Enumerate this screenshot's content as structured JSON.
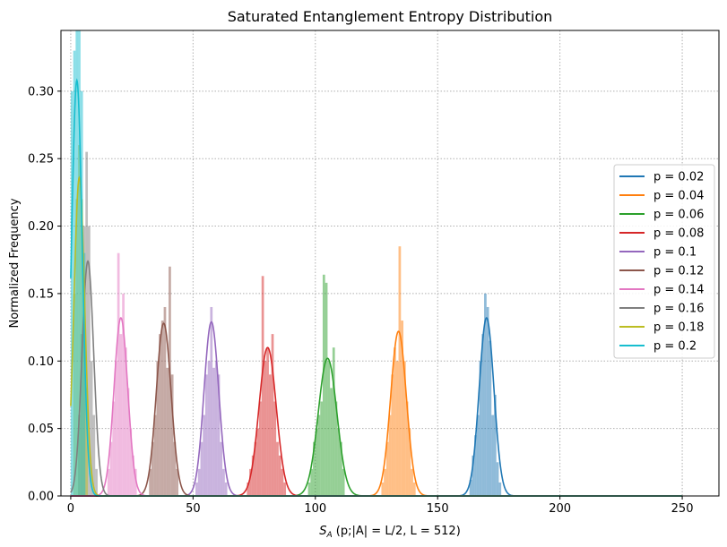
{
  "chart_data": {
    "type": "histogram+line",
    "title": "Saturated Entanglement Entropy Distribution",
    "xlabel": {
      "main": "S",
      "sub": "A",
      "rest": " (p;|A| = L/2, L = 512)"
    },
    "ylabel": "Normalized Frequency",
    "xlim": [
      -4,
      265
    ],
    "ylim": [
      0,
      0.345
    ],
    "xticks": [
      0,
      50,
      100,
      150,
      200,
      250
    ],
    "yticks": [
      0.0,
      0.05,
      0.1,
      0.15,
      0.2,
      0.25,
      0.3
    ],
    "ytick_labels": [
      "0.00",
      "0.05",
      "0.10",
      "0.15",
      "0.20",
      "0.25",
      "0.30"
    ],
    "grid": true,
    "legend_position": "center-right",
    "fit_x_range": [
      0,
      250
    ],
    "series": [
      {
        "name": "p = 0.02",
        "color": "#1f77b4",
        "mean": 170.0,
        "peak": 0.132,
        "sigma": 3.0,
        "hist_x": [
          163.5,
          164.5,
          165.5,
          166.5,
          167.5,
          168.5,
          169.5,
          170.5,
          171.5,
          172.5,
          173.5,
          174.5,
          175.5
        ],
        "hist_y": [
          0.012,
          0.03,
          0.045,
          0.06,
          0.1,
          0.12,
          0.15,
          0.14,
          0.115,
          0.06,
          0.075,
          0.025,
          0.01
        ]
      },
      {
        "name": "p = 0.04",
        "color": "#ff7f0e",
        "mean": 134.0,
        "peak": 0.122,
        "sigma": 3.2,
        "hist_x": [
          127.5,
          128.5,
          129.5,
          130.5,
          131.5,
          132.5,
          133.5,
          134.5,
          135.5,
          136.5,
          137.5,
          138.5,
          139.5,
          140.5
        ],
        "hist_y": [
          0.01,
          0.02,
          0.04,
          0.06,
          0.09,
          0.11,
          0.1,
          0.185,
          0.13,
          0.1,
          0.07,
          0.05,
          0.02,
          0.01
        ]
      },
      {
        "name": "p = 0.06",
        "color": "#2ca02c",
        "mean": 105.0,
        "peak": 0.102,
        "sigma": 3.8,
        "hist_x": [
          97.5,
          98.5,
          99.5,
          100.5,
          101.5,
          102.5,
          103.5,
          104.5,
          105.5,
          106.5,
          107.5,
          108.5,
          109.5,
          110.5,
          111.5
        ],
        "hist_y": [
          0.01,
          0.02,
          0.04,
          0.05,
          0.06,
          0.07,
          0.164,
          0.158,
          0.1,
          0.08,
          0.11,
          0.07,
          0.05,
          0.04,
          0.02
        ]
      },
      {
        "name": "p = 0.08",
        "color": "#d62728",
        "mean": 80.5,
        "peak": 0.11,
        "sigma": 3.5,
        "hist_x": [
          72.5,
          73.5,
          74.5,
          75.5,
          76.5,
          77.5,
          78.5,
          79.5,
          80.5,
          81.5,
          82.5,
          83.5,
          84.5,
          85.5,
          86.5,
          87.5
        ],
        "hist_y": [
          0.01,
          0.02,
          0.03,
          0.04,
          0.05,
          0.07,
          0.163,
          0.1,
          0.11,
          0.09,
          0.12,
          0.07,
          0.04,
          0.03,
          0.02,
          0.01
        ]
      },
      {
        "name": "p = 0.1",
        "color": "#9467bd",
        "mean": 57.5,
        "peak": 0.129,
        "sigma": 3.0,
        "hist_x": [
          51.5,
          52.5,
          53.5,
          54.5,
          55.5,
          56.5,
          57.5,
          58.5,
          59.5,
          60.5,
          61.5,
          62.5,
          63.5
        ],
        "hist_y": [
          0.01,
          0.02,
          0.04,
          0.06,
          0.09,
          0.1,
          0.14,
          0.095,
          0.1,
          0.09,
          0.04,
          0.02,
          0.01
        ]
      },
      {
        "name": "p = 0.12",
        "color": "#8c564b",
        "mean": 38.0,
        "peak": 0.128,
        "sigma": 3.0,
        "hist_x": [
          32.5,
          33.5,
          34.5,
          35.5,
          36.5,
          37.5,
          38.5,
          39.5,
          40.5,
          41.5,
          42.5,
          43.5
        ],
        "hist_y": [
          0.02,
          0.04,
          0.06,
          0.1,
          0.12,
          0.13,
          0.14,
          0.095,
          0.17,
          0.09,
          0.04,
          0.02
        ]
      },
      {
        "name": "p = 0.14",
        "color": "#e377c2",
        "mean": 20.5,
        "peak": 0.132,
        "sigma": 2.8,
        "hist_x": [
          15.5,
          16.5,
          17.5,
          18.5,
          19.5,
          20.5,
          21.5,
          22.5,
          23.5,
          24.5,
          25.5,
          26.5
        ],
        "hist_y": [
          0.02,
          0.04,
          0.07,
          0.1,
          0.18,
          0.12,
          0.15,
          0.11,
          0.08,
          0.05,
          0.03,
          0.02
        ]
      },
      {
        "name": "p = 0.16",
        "color": "#7f7f7f",
        "mean": 7.0,
        "peak": 0.174,
        "sigma": 2.4,
        "hist_x": [
          3.5,
          4.5,
          5.5,
          6.5,
          7.5,
          8.5,
          9.5,
          10.5
        ],
        "hist_y": [
          0.06,
          0.12,
          0.2,
          0.255,
          0.2,
          0.1,
          0.06,
          0.02
        ]
      },
      {
        "name": "p = 0.18",
        "color": "#bcbd22",
        "mean": 3.5,
        "peak": 0.236,
        "sigma": 2.2,
        "hist_x": [
          1.5,
          2.5,
          3.5,
          4.5,
          5.5,
          6.5
        ],
        "hist_y": [
          0.15,
          0.22,
          0.26,
          0.22,
          0.15,
          0.08
        ]
      },
      {
        "name": "p = 0.2",
        "color": "#17becf",
        "mean": 2.5,
        "peak": 0.308,
        "sigma": 2.2,
        "hist_x": [
          0.5,
          1.5,
          2.5,
          3.5,
          4.5,
          5.5
        ],
        "hist_y": [
          0.3,
          0.33,
          0.345,
          0.345,
          0.3,
          0.18
        ]
      }
    ]
  }
}
